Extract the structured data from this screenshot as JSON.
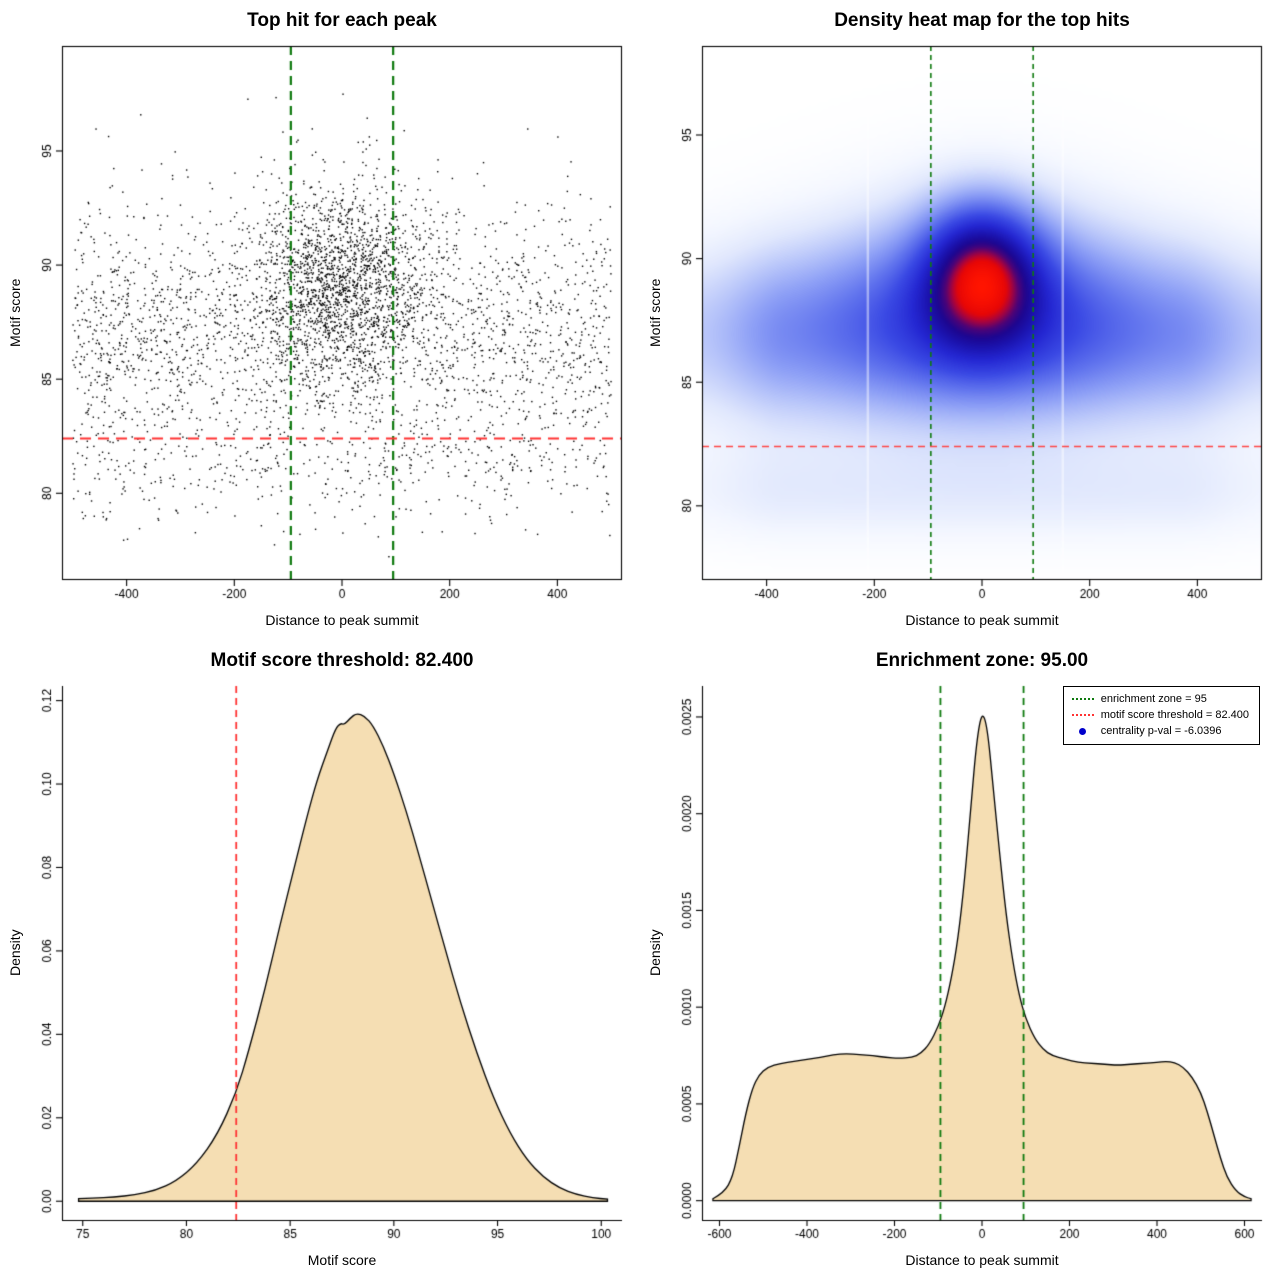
{
  "page": {
    "background": "#ffffff"
  },
  "chart_data": [
    {
      "id": "top-hits-scatter",
      "type": "scatter",
      "title": "Top hit for each peak",
      "xlabel": "Distance to peak summit",
      "ylabel": "Motif score",
      "xlim": [
        -520,
        520
      ],
      "ylim": [
        76.2,
        99.6
      ],
      "xticks": [
        -400,
        -200,
        0,
        200,
        400
      ],
      "yticks": [
        80,
        85,
        90,
        95
      ],
      "box": true,
      "point_color": "#000000",
      "point_size": 1.4,
      "points": {
        "seed": 1337,
        "clip_x": [
          -500,
          500
        ],
        "clip_y": [
          76.5,
          99.3
        ],
        "groups": [
          {
            "n": 2450,
            "x_dist": "uniform",
            "x_a": -500,
            "x_b": 500,
            "y_dist": "normal",
            "y_mean": 86.9,
            "y_sd": 3.0
          },
          {
            "n": 1750,
            "x_dist": "normal",
            "x_mean": 0,
            "x_sd": 80,
            "y_dist": "normal",
            "y_mean": 89.3,
            "y_sd": 2.2
          },
          {
            "n": 280,
            "x_dist": "uniform",
            "x_a": -500,
            "x_b": 500,
            "y_dist": "below",
            "y_at": 82.3,
            "y_sd": 1.9
          }
        ]
      },
      "vlines": [
        {
          "x": -95,
          "color": "#0e7a0e",
          "width": 2.2,
          "dash": [
            9,
            6
          ]
        },
        {
          "x": 95,
          "color": "#0e7a0e",
          "width": 2.2,
          "dash": [
            9,
            6
          ]
        }
      ],
      "hlines": [
        {
          "y": 82.4,
          "color": "#ff3333",
          "width": 2.2,
          "dash": [
            11,
            7
          ]
        }
      ]
    },
    {
      "id": "top-hits-heatmap",
      "type": "density2d",
      "title": "Density heat map for the top hits",
      "xlabel": "Distance to peak summit",
      "ylabel": "Motif score",
      "xlim": [
        -520,
        520
      ],
      "ylim": [
        77.0,
        98.6
      ],
      "xticks": [
        -400,
        -200,
        0,
        200,
        400
      ],
      "yticks": [
        80,
        85,
        90,
        95
      ],
      "box": true,
      "grid_n": 150,
      "components": [
        {
          "w": 1.0,
          "mx": 0,
          "sx": 72,
          "my": 89.4,
          "sy": 1.9
        },
        {
          "w": 0.5,
          "mx": 0,
          "sx": 185,
          "my": 88.2,
          "sy": 2.9
        },
        {
          "w": 0.45,
          "band": true,
          "my": 86.9,
          "sy": 2.5
        },
        {
          "w": 0.13,
          "band": true,
          "my": 80.5,
          "sy": 1.4
        }
      ],
      "edge_fade": {
        "start": 360,
        "end": 540,
        "min": 0.6
      },
      "white_streaks": [
        -212,
        150
      ],
      "colormap": [
        [
          0,
          "#ffffff"
        ],
        [
          0.04,
          "#f4f7ff"
        ],
        [
          0.09,
          "#e1e8fd"
        ],
        [
          0.16,
          "#bac7fa"
        ],
        [
          0.24,
          "#8ea0f6"
        ],
        [
          0.33,
          "#6275ee"
        ],
        [
          0.43,
          "#3a49e4"
        ],
        [
          0.54,
          "#2427d2"
        ],
        [
          0.64,
          "#1b13ae"
        ],
        [
          0.72,
          "#1c0690"
        ],
        [
          0.79,
          "#4c0377"
        ],
        [
          0.85,
          "#a8033e"
        ],
        [
          0.9,
          "#e60606"
        ],
        [
          1,
          "#ff1400"
        ]
      ],
      "vlines": [
        {
          "x": -95,
          "color": "#0e7a0e",
          "width": 1.6,
          "dash": [
            5,
            4
          ]
        },
        {
          "x": 95,
          "color": "#0e7a0e",
          "width": 1.6,
          "dash": [
            5,
            4
          ]
        }
      ],
      "hlines": [
        {
          "y": 82.4,
          "color": "#ff4545",
          "width": 1.6,
          "dash": [
            7,
            5
          ]
        }
      ]
    },
    {
      "id": "motif-score-density",
      "type": "density",
      "title": "Motif score threshold: 82.400",
      "xlabel": "Motif score",
      "ylabel": "Density",
      "xlim": [
        74.0,
        101.0
      ],
      "ylim": [
        -0.0045,
        0.1235
      ],
      "xticks": [
        75,
        80,
        85,
        90,
        95,
        100
      ],
      "yticks": [
        0,
        0.02,
        0.04,
        0.06,
        0.08,
        0.1,
        0.12
      ],
      "ytick_labels": [
        "0.00",
        "0.02",
        "0.04",
        "0.06",
        "0.08",
        "0.10",
        "0.12"
      ],
      "box": false,
      "fill": "#f5deb3",
      "stroke": "#000000",
      "curve": [
        [
          74.8,
          0.0006
        ],
        [
          75.5,
          0.0007
        ],
        [
          76.5,
          0.001
        ],
        [
          77.5,
          0.0015
        ],
        [
          78.5,
          0.0026
        ],
        [
          79.5,
          0.0048
        ],
        [
          80.5,
          0.009
        ],
        [
          81.5,
          0.016
        ],
        [
          82.4,
          0.026
        ],
        [
          83,
          0.036
        ],
        [
          83.8,
          0.051
        ],
        [
          84.5,
          0.066
        ],
        [
          85.2,
          0.08
        ],
        [
          85.8,
          0.092
        ],
        [
          86.3,
          0.101
        ],
        [
          86.8,
          0.108
        ],
        [
          87.2,
          0.1135
        ],
        [
          87.45,
          0.1146
        ],
        [
          87.6,
          0.1142
        ],
        [
          87.9,
          0.1158
        ],
        [
          88.2,
          0.117
        ],
        [
          88.6,
          0.1163
        ],
        [
          89,
          0.114
        ],
        [
          89.5,
          0.109
        ],
        [
          90,
          0.1025
        ],
        [
          90.6,
          0.0935
        ],
        [
          91.2,
          0.0832
        ],
        [
          91.8,
          0.0725
        ],
        [
          92.5,
          0.06
        ],
        [
          93.2,
          0.0478
        ],
        [
          94,
          0.0355
        ],
        [
          94.8,
          0.0248
        ],
        [
          95.6,
          0.0163
        ],
        [
          96.4,
          0.01
        ],
        [
          97.2,
          0.0058
        ],
        [
          98,
          0.0031
        ],
        [
          98.8,
          0.0016
        ],
        [
          99.6,
          0.0008
        ],
        [
          100.3,
          0.0005
        ]
      ],
      "vlines": [
        {
          "x": 82.4,
          "color": "#ff3333",
          "width": 1.8,
          "dash": [
            7,
            5
          ]
        }
      ],
      "hlines": []
    },
    {
      "id": "enrichment-density",
      "type": "density",
      "title": "Enrichment zone: 95.00",
      "xlabel": "Distance to peak summit",
      "ylabel": "Density",
      "xlim": [
        -640,
        640
      ],
      "ylim": [
        -0.0001,
        0.00266
      ],
      "xticks": [
        -600,
        -400,
        -200,
        0,
        200,
        400,
        600
      ],
      "yticks": [
        0,
        0.0005,
        0.001,
        0.0015,
        0.002,
        0.0025
      ],
      "ytick_labels": [
        "0.0000",
        "0.0005",
        "0.0010",
        "0.0015",
        "0.0020",
        "0.0025"
      ],
      "box": false,
      "fill": "#f5deb3",
      "stroke": "#000000",
      "curve": [
        [
          -615,
          1e-05
        ],
        [
          -590,
          4e-05
        ],
        [
          -570,
          0.00012
        ],
        [
          -555,
          0.00028
        ],
        [
          -540,
          0.00045
        ],
        [
          -525,
          0.00058
        ],
        [
          -510,
          0.00065
        ],
        [
          -490,
          0.00069
        ],
        [
          -460,
          0.00071
        ],
        [
          -430,
          0.00072
        ],
        [
          -400,
          0.00073
        ],
        [
          -370,
          0.00074
        ],
        [
          -340,
          0.000755
        ],
        [
          -310,
          0.00076
        ],
        [
          -280,
          0.000755
        ],
        [
          -250,
          0.00075
        ],
        [
          -220,
          0.00074
        ],
        [
          -190,
          0.000735
        ],
        [
          -160,
          0.00074
        ],
        [
          -140,
          0.00076
        ],
        [
          -120,
          0.00081
        ],
        [
          -100,
          0.0009
        ],
        [
          -85,
          0.001
        ],
        [
          -70,
          0.00115
        ],
        [
          -55,
          0.00135
        ],
        [
          -40,
          0.00165
        ],
        [
          -25,
          0.00205
        ],
        [
          -12,
          0.00238
        ],
        [
          0,
          0.00253
        ],
        [
          12,
          0.00245
        ],
        [
          25,
          0.00215
        ],
        [
          40,
          0.0018
        ],
        [
          55,
          0.00148
        ],
        [
          70,
          0.00124
        ],
        [
          85,
          0.00106
        ],
        [
          100,
          0.00094
        ],
        [
          120,
          0.00084
        ],
        [
          140,
          0.00078
        ],
        [
          160,
          0.00075
        ],
        [
          190,
          0.00073
        ],
        [
          220,
          0.000715
        ],
        [
          250,
          0.00071
        ],
        [
          280,
          0.000705
        ],
        [
          310,
          0.0007
        ],
        [
          340,
          0.000705
        ],
        [
          370,
          0.00071
        ],
        [
          400,
          0.000715
        ],
        [
          420,
          0.00072
        ],
        [
          440,
          0.000715
        ],
        [
          460,
          0.00069
        ],
        [
          480,
          0.00064
        ],
        [
          500,
          0.00056
        ],
        [
          515,
          0.00046
        ],
        [
          530,
          0.00034
        ],
        [
          545,
          0.00022
        ],
        [
          560,
          0.00012
        ],
        [
          580,
          5e-05
        ],
        [
          600,
          2e-05
        ],
        [
          615,
          1e-05
        ]
      ],
      "vlines": [
        {
          "x": -95,
          "color": "#0e7a0e",
          "width": 1.8,
          "dash": [
            7,
            5
          ]
        },
        {
          "x": 95,
          "color": "#0e7a0e",
          "width": 1.8,
          "dash": [
            7,
            5
          ]
        }
      ],
      "hlines": [],
      "legend": {
        "border_color": "#000000",
        "items": [
          {
            "label": "enrichment zone = 95",
            "color": "#0e7a0e",
            "glyph": "dotted-line"
          },
          {
            "label": "motif score threshold = 82.400",
            "color": "#ff3333",
            "glyph": "dotted-line"
          },
          {
            "label": "centrality p-val = -6.0396",
            "color": "#0000cc",
            "glyph": "dot"
          }
        ]
      }
    }
  ]
}
